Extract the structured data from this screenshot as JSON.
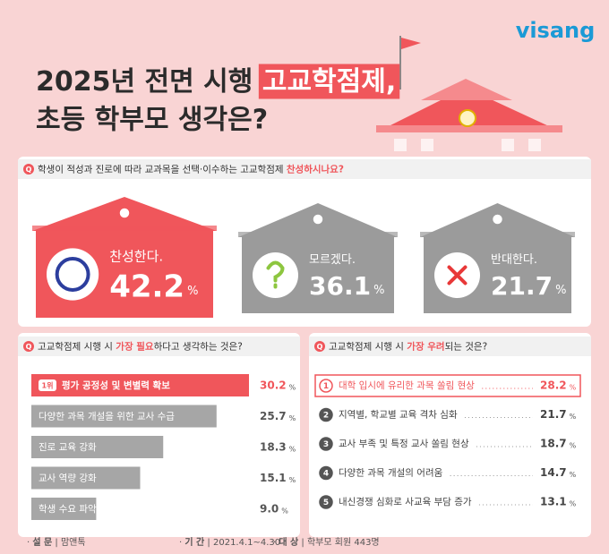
{
  "header": {
    "logo": "visang",
    "title_line1": "2025년 전면 시행 ",
    "title_highlight": "고교학점제,",
    "title_line2": "초등 학부모 생각은?"
  },
  "chart_data": [
    {
      "type": "cards",
      "question_mark": "Q",
      "question": "학생이 적성과 진로에 따라 교과목을 선택·이수하는 고교학점제 ",
      "question_highlight": "찬성하시나요?",
      "categories": [
        "찬성한다.",
        "모르겠다.",
        "반대한다."
      ],
      "values": [
        42.2,
        36.1,
        21.7
      ],
      "unit": "%",
      "colors": [
        "#f0565b",
        "#9b9b9b",
        "#9b9b9b"
      ]
    },
    {
      "type": "bar",
      "question_mark": "Q",
      "question": "고교학점제 시행 시 ",
      "question_highlight": "가장 필요",
      "question_after": "하다고 생각하는 것은?",
      "badge": "1위",
      "categories": [
        "평가 공정성 및 변별력 확보",
        "다양한 과목 개설을 위한 교사 수급",
        "진로 교육 강화",
        "교사 역량 강화",
        "학생 수요 파악"
      ],
      "values": [
        30.2,
        25.7,
        18.3,
        15.1,
        9.0
      ],
      "value_labels": [
        "30.2",
        "25.7",
        "18.3",
        "15.1",
        "9.0"
      ],
      "unit": "%",
      "colors": [
        "#f0565b",
        "#a6a6a6",
        "#a6a6a6",
        "#a6a6a6",
        "#a6a6a6"
      ]
    },
    {
      "type": "list",
      "question_mark": "Q",
      "question": "고교학점제 시행 시 ",
      "question_highlight": "가장 우려",
      "question_after": "되는 것은?",
      "ranks": [
        1,
        2,
        3,
        4,
        5
      ],
      "categories": [
        "대학 입시에 유리한 과목 쏠림 현상",
        "지역별, 학교별 교육 격차 심화",
        "교사 부족 및 특정 교사 쏠림 현상",
        "다양한 과목 개설의 어려움",
        "내신경쟁 심화로 사교육 부담 증가"
      ],
      "values": [
        28.2,
        21.7,
        18.7,
        14.7,
        13.1
      ],
      "unit": "%",
      "colors": [
        "#f0565b",
        "#555555",
        "#555555",
        "#555555",
        "#555555"
      ]
    }
  ],
  "footer": {
    "survey_label": "설 문",
    "survey": "맘앤톡",
    "period_label": "기 간",
    "period": "2021.4.1~4.30",
    "target_label": "대 상",
    "target": "학부모 회원 443명"
  }
}
